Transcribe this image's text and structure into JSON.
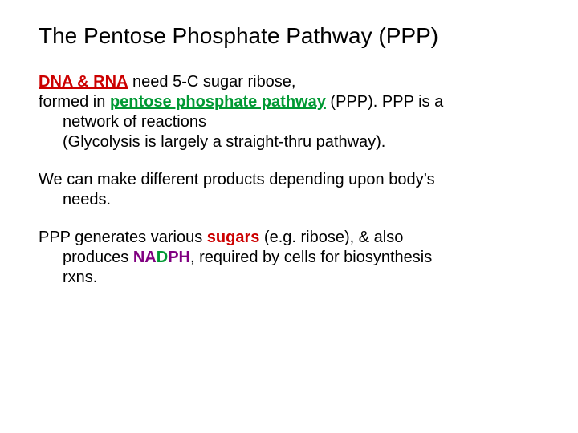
{
  "slide": {
    "title": "The Pentose Phosphate Pathway (PPP)",
    "p1": {
      "t1": "DNA & RNA",
      "t2": " need 5-C sugar ribose,",
      "t3": "formed in ",
      "t4": "pentose phosphate pathway",
      "t5": " (PPP). PPP is a",
      "t6": "network of reactions",
      "t7": "(Glycolysis is largely a straight-thru pathway)."
    },
    "p2": {
      "line1": "We can make different products depending upon body’s",
      "line2": "needs."
    },
    "p3": {
      "t1": "PPP generates various ",
      "t2": "sugars",
      "t3": " (e.g. ribose), & also",
      "t4": "produces ",
      "t5a": "NA",
      "t5b": "D",
      "t5c": "PH",
      "t6": ", required by cells for biosynthesis",
      "t7": "rxns."
    },
    "colors": {
      "dna_rna": "#cc0000",
      "ppp": "#009933",
      "sugars": "#cc0000",
      "na": "#800080",
      "d": "#009933",
      "ph": "#800080",
      "text": "#000000",
      "bg": "#ffffff"
    },
    "font_sizes": {
      "title": 28,
      "body": 20
    }
  }
}
